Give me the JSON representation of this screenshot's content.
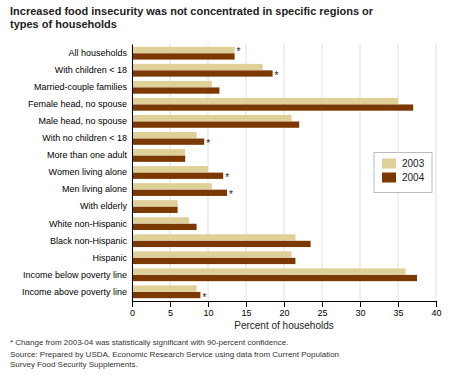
{
  "chart_data": {
    "type": "bar",
    "orientation": "horizontal",
    "title": "Increased food insecurity was not concentrated in specific regions or\ntypes of households",
    "categories": [
      "All households",
      "With children < 18",
      "Married-couple families",
      "Female head, no spouse",
      "Male head, no spouse",
      "With no children < 18",
      "More than one adult",
      "Women living alone",
      "Men living alone",
      "With elderly",
      "White non-Hispanic",
      "Black non-Hispanic",
      "Hispanic",
      "Income below poverty line",
      "Income above poverty line"
    ],
    "series": [
      {
        "name": "2003",
        "color": "#dfd098",
        "values": [
          13.5,
          17.2,
          10.5,
          35.0,
          21.0,
          8.5,
          7.0,
          10.0,
          10.5,
          6.0,
          7.5,
          21.5,
          21.0,
          36.0,
          8.5
        ]
      },
      {
        "name": "2004",
        "color": "#7B3800",
        "values": [
          13.5,
          18.5,
          11.5,
          37.0,
          22.0,
          9.5,
          7.0,
          12.0,
          12.5,
          6.0,
          8.5,
          23.5,
          21.5,
          37.5,
          9.0
        ]
      }
    ],
    "xlabel": "Percent of households",
    "xlim": [
      0,
      40
    ],
    "xticks": [
      0,
      5,
      10,
      15,
      20,
      25,
      30,
      35,
      40
    ],
    "grid": true,
    "legend": "right",
    "annotations": [
      {
        "text": "*",
        "series": "2003",
        "category": "All households"
      },
      {
        "text": "*",
        "series": "2004",
        "category": "With children < 18"
      },
      {
        "text": "*",
        "series": "2004",
        "category": "With no children < 18"
      },
      {
        "text": "*",
        "series": "2004",
        "category": "Women living alone"
      },
      {
        "text": "*",
        "series": "2004",
        "category": "Men living alone"
      },
      {
        "text": "*",
        "series": "2004",
        "category": "Income above poverty line"
      }
    ],
    "notes": [
      "* Change from 2003-04 was statistically significant with 90-percent confidence.",
      "Source:  Prepared by USDA, Economic Research Service using data from Current Population\nSurvey Food Security Supplements."
    ]
  }
}
